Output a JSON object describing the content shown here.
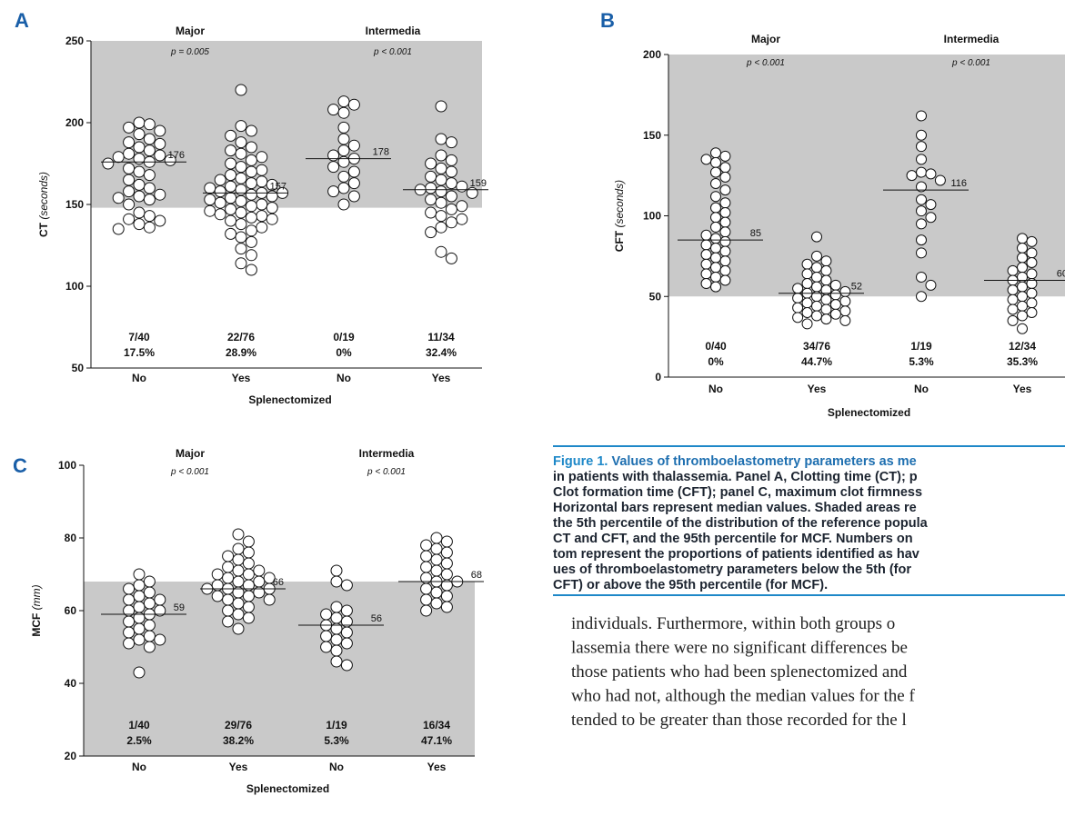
{
  "chart_data": [
    {
      "type": "swarm",
      "panel": "A",
      "groups": [
        "Major",
        "Intermedia"
      ],
      "p_values": [
        "p = 0.005",
        "p < 0.001"
      ],
      "categories": [
        "No",
        "Yes",
        "No",
        "Yes"
      ],
      "xlabel": "Splenectomized",
      "ylabel": "CT",
      "ylabel_unit": "(seconds)",
      "ylim": [
        50,
        250
      ],
      "yticks": [
        50,
        100,
        150,
        200,
        250
      ],
      "shade": [
        148,
        250
      ],
      "points": [
        [
          200,
          199,
          197,
          195,
          193,
          190,
          188,
          187,
          185,
          183,
          181,
          180,
          179,
          178,
          177,
          176,
          175,
          172,
          170,
          168,
          165,
          162,
          160,
          158,
          156,
          155,
          154,
          153,
          150,
          145,
          143,
          141,
          140,
          138,
          136,
          135
        ],
        [
          220,
          198,
          195,
          192,
          188,
          185,
          183,
          181,
          179,
          177,
          175,
          173,
          171,
          170,
          168,
          166,
          165,
          164,
          163,
          162,
          161,
          160,
          159,
          158,
          157,
          157,
          156,
          155,
          154,
          153,
          152,
          151,
          150,
          149,
          148,
          147,
          146,
          145,
          144,
          143,
          142,
          141,
          140,
          138,
          136,
          134,
          132,
          130,
          127,
          123,
          119,
          114,
          110
        ],
        [
          213,
          211,
          208,
          206,
          197,
          190,
          186,
          183,
          180,
          178,
          176,
          173,
          170,
          167,
          163,
          160,
          158,
          155,
          150
        ],
        [
          210,
          190,
          188,
          180,
          177,
          175,
          172,
          170,
          167,
          165,
          163,
          161,
          160,
          159,
          158,
          157,
          155,
          153,
          151,
          149,
          147,
          145,
          143,
          141,
          139,
          136,
          133,
          121,
          117
        ]
      ],
      "medians": [
        176,
        157,
        178,
        159
      ],
      "fractions": [
        "7/40",
        "22/76",
        "0/19",
        "11/34"
      ],
      "percents": [
        "17.5%",
        "28.9%",
        "0%",
        "32.4%"
      ]
    },
    {
      "type": "swarm",
      "panel": "B",
      "groups": [
        "Major",
        "Intermedia"
      ],
      "p_values": [
        "p < 0.001",
        "p < 0.001"
      ],
      "categories": [
        "No",
        "Yes",
        "No",
        "Yes"
      ],
      "xlabel": "Splenectomized",
      "ylabel": "CFT",
      "ylabel_unit": "(seconds)",
      "ylim": [
        0,
        200
      ],
      "yticks": [
        0,
        50,
        100,
        150,
        200
      ],
      "shade": [
        50,
        200
      ],
      "points": [
        [
          139,
          137,
          135,
          133,
          130,
          127,
          124,
          120,
          116,
          112,
          108,
          105,
          102,
          99,
          96,
          93,
          90,
          88,
          86,
          84,
          82,
          80,
          78,
          76,
          74,
          72,
          70,
          68,
          66,
          64,
          62,
          60,
          58,
          56
        ],
        [
          87,
          75,
          72,
          70,
          68,
          66,
          64,
          62,
          60,
          58,
          57,
          56,
          55,
          54,
          53,
          52,
          51,
          50,
          49,
          48,
          47,
          46,
          45,
          44,
          43,
          42,
          41,
          40,
          39,
          38,
          37,
          36,
          35,
          33
        ],
        [
          162,
          150,
          143,
          135,
          127,
          126,
          125,
          122,
          118,
          110,
          107,
          103,
          99,
          95,
          85,
          77,
          62,
          57,
          50
        ],
        [
          86,
          84,
          80,
          77,
          74,
          71,
          68,
          66,
          64,
          62,
          60,
          58,
          56,
          54,
          52,
          50,
          48,
          46,
          44,
          42,
          40,
          38,
          35,
          30
        ]
      ],
      "medians": [
        85,
        52,
        116,
        60
      ],
      "fractions": [
        "0/40",
        "34/76",
        "1/19",
        "12/34"
      ],
      "percents": [
        "0%",
        "44.7%",
        "5.3%",
        "35.3%"
      ]
    },
    {
      "type": "swarm",
      "panel": "C",
      "groups": [
        "Major",
        "Intermedia"
      ],
      "p_values": [
        "p < 0.001",
        "p < 0.001"
      ],
      "categories": [
        "No",
        "Yes",
        "No",
        "Yes"
      ],
      "xlabel": "Splenectomized",
      "ylabel": "MCF",
      "ylabel_unit": "(mm)",
      "ylim": [
        20,
        100
      ],
      "yticks": [
        20,
        40,
        60,
        80,
        100
      ],
      "shade": [
        20,
        68
      ],
      "points": [
        [
          70,
          68,
          67,
          66,
          65,
          64,
          63,
          63,
          62,
          61,
          60,
          60,
          59,
          58,
          57,
          56,
          55,
          54,
          53,
          52,
          52,
          51,
          50,
          43
        ],
        [
          81,
          79,
          77,
          76,
          75,
          74,
          73,
          72,
          71,
          71,
          70,
          70,
          69,
          69,
          68,
          68,
          67,
          67,
          66,
          66,
          66,
          65,
          65,
          64,
          64,
          63,
          63,
          62,
          61,
          60,
          59,
          58,
          57,
          55
        ],
        [
          71,
          68,
          67,
          61,
          60,
          59,
          58,
          57,
          56,
          55,
          54,
          53,
          52,
          51,
          50,
          49,
          46,
          45
        ],
        [
          80,
          79,
          78,
          77,
          76,
          75,
          74,
          73,
          72,
          71,
          70,
          69,
          68,
          68,
          67,
          66,
          65,
          64,
          63,
          62,
          61,
          60
        ]
      ],
      "medians": [
        59,
        66,
        56,
        68
      ],
      "fractions": [
        "1/40",
        "29/76",
        "1/19",
        "16/34"
      ],
      "percents": [
        "2.5%",
        "38.2%",
        "5.3%",
        "47.1%"
      ]
    }
  ],
  "caption": {
    "label": "Figure 1.",
    "lines": [
      "Values of thromboelastometry parameters as me",
      "in patients with thalassemia. Panel A, Clotting time (CT); p",
      "Clot formation time (CFT); panel C, maximum clot firmness",
      "Horizontal bars represent median values. Shaded areas re",
      "the 5th percentile of the distribution of the reference popula",
      "CT and CFT, and the 95th percentile for MCF. Numbers on",
      "tom represent the proportions of patients identified as hav",
      "ues of thromboelastometry parameters below the 5th (for",
      "CFT) or above the 95th percentile (for MCF)."
    ]
  },
  "body_text": [
    "individuals. Furthermore, within both groups o",
    "lassemia there were no significant differences be",
    "those patients who had been splenectomized and",
    "who had not, although the median values for the f",
    "tended to be greater than those recorded for the l"
  ]
}
